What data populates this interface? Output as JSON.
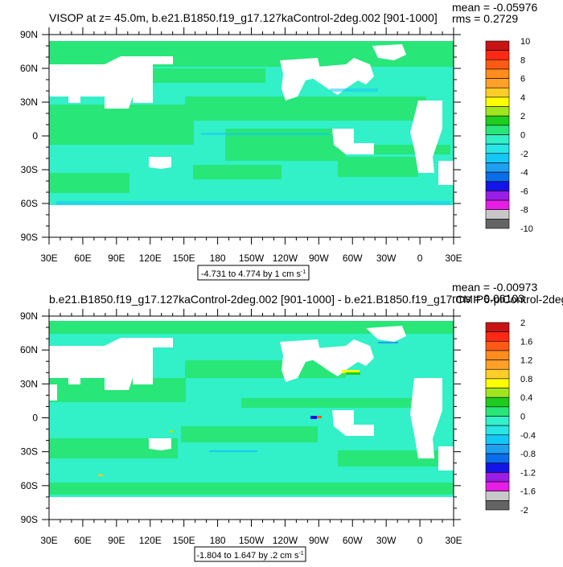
{
  "colors": {
    "land": "#ffffff",
    "frame": "#000000"
  },
  "palette": [
    "#646464",
    "#c8c8c8",
    "#e61ee6",
    "#9a1ee6",
    "#1414e6",
    "#0a6eeb",
    "#1ea0f0",
    "#14c8f5",
    "#28e6e6",
    "#32f0c8",
    "#28e678",
    "#1ecd1e",
    "#a0e61e",
    "#ffff00",
    "#ffcd28",
    "#ffa028",
    "#ff8c1e",
    "#ff5a14",
    "#ff2814",
    "#c81414"
  ],
  "charts": [
    {
      "title": "VISOP at z=  45.0m, b.e21.B1850.f19_g17.127kaControl-2deg.002 [901-1000]",
      "mean": "mean = -0.05976",
      "rms": "rms = 0.2729",
      "range_label": "-4.731 to 4.774 by 1 cm s",
      "range_unit_sup": "-1"
    },
    {
      "title": "b.e21.B1850.f19_g17.127kaControl-2deg.002 [901-1000] - b.e21.B1850.f19_g17.CMIP6-piControl-2deg.",
      "mean": "mean = -0.00973",
      "rms": "rms = 0.06103",
      "range_label": "-1.804 to 1.647 by .2 cm s",
      "range_unit_sup": "-1"
    }
  ],
  "chart_data": [
    {
      "type": "heatmap",
      "variable": "VISOP",
      "xlabels": [
        "30E",
        "60E",
        "90E",
        "120E",
        "150E",
        "180",
        "150W",
        "120W",
        "90W",
        "60W",
        "30W",
        "0",
        "30E"
      ],
      "ylabels": [
        "90N",
        "60N",
        "30N",
        "0",
        "30S",
        "60S",
        "90S"
      ],
      "xlim": [
        30,
        390
      ],
      "ylim": [
        -90,
        90
      ],
      "colorbar_labels": [
        "10",
        "8",
        "6",
        "4",
        "2",
        "0",
        "-2",
        "-4",
        "-6",
        "-8",
        "-10"
      ],
      "colorbar_range": [
        -10,
        10
      ],
      "dominant_value": 0,
      "min": -4.731,
      "max": 4.774,
      "mean": -0.05976,
      "rms": 0.2729
    },
    {
      "type": "heatmap",
      "variable": "VISOP difference",
      "xlabels": [
        "30E",
        "60E",
        "90E",
        "120E",
        "150E",
        "180",
        "150W",
        "120W",
        "90W",
        "60W",
        "30W",
        "0",
        "30E"
      ],
      "ylabels": [
        "90N",
        "60N",
        "30N",
        "0",
        "30S",
        "60S",
        "90S"
      ],
      "xlim": [
        30,
        390
      ],
      "ylim": [
        -90,
        90
      ],
      "colorbar_labels": [
        "2",
        "1.6",
        "1.2",
        "0.8",
        "0.4",
        "0",
        "-0.4",
        "-0.8",
        "-1.2",
        "-1.6",
        "-2"
      ],
      "colorbar_range": [
        -2,
        2
      ],
      "dominant_value": 0,
      "min": -1.804,
      "max": 1.647,
      "mean": -0.00973,
      "rms": 0.06103
    }
  ]
}
